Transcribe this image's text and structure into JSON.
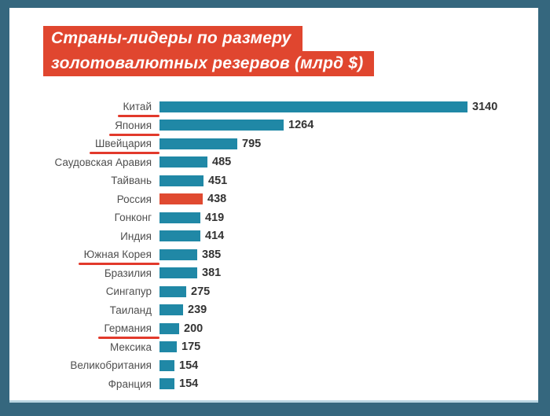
{
  "chart_data": {
    "type": "bar",
    "orientation": "horizontal",
    "title": "Страны-лидеры по размеру золотовалютных резервов (млрд $)",
    "title_lines": [
      "Страны-лидеры по размеру",
      "золотовалютных резервов (млрд $)"
    ],
    "unit": "млрд $",
    "categories": [
      "Китай",
      "Япония",
      "Швейцария",
      "Саудовская Аравия",
      "Тайвань",
      "Россия",
      "Гонконг",
      "Индия",
      "Южная Корея",
      "Бразилия",
      "Сингапур",
      "Таиланд",
      "Германия",
      "Мексика",
      "Великобритания",
      "Франция"
    ],
    "values": [
      3140,
      1264,
      795,
      485,
      451,
      438,
      419,
      414,
      385,
      381,
      275,
      239,
      200,
      175,
      154,
      154
    ],
    "highlighted_category": "Россия",
    "underlined_categories": [
      "Китай",
      "Япония",
      "Швейцария",
      "Южная Корея",
      "Германия"
    ],
    "xlim": [
      0,
      3140
    ],
    "value_labels_shown": true,
    "grid": false,
    "legend": "none"
  },
  "colors": {
    "frame_teal": "#35677e",
    "panel_white": "#ffffff",
    "bar_teal": "#2088a6",
    "banner_red": "#e0462f",
    "highlight_red": "#e04a31",
    "underline_red": "#e2392b",
    "label_gray": "#4f4f4f",
    "value_dark": "#333333",
    "title_text": "#ffffff"
  }
}
